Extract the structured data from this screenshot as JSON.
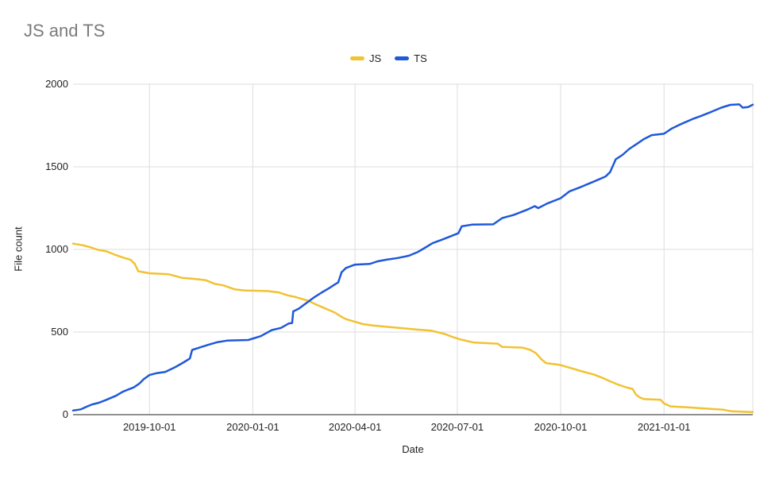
{
  "title": "JS and TS",
  "legend": [
    {
      "label": "JS",
      "color": "#f1c232"
    },
    {
      "label": "TS",
      "color": "#1f58d9"
    }
  ],
  "axis": {
    "y_title": "File count",
    "x_title": "Date"
  },
  "colors": {
    "gridline": "#dcdcdc",
    "axis_line": "#4d4d4d",
    "title_text": "#7b7b7b",
    "tick_text": "#1f1f1f"
  },
  "chart_data": {
    "type": "line",
    "title": "JS and TS",
    "xlabel": "Date",
    "ylabel": "File count",
    "ylim": [
      0,
      2000
    ],
    "yticks": [
      0,
      500,
      1000,
      1500,
      2000
    ],
    "xticks": [
      "2019-10-01",
      "2020-01-01",
      "2020-04-01",
      "2020-07-01",
      "2020-10-01",
      "2021-01-01"
    ],
    "x_range": [
      "2019-07-25",
      "2021-03-21"
    ],
    "grid": true,
    "legend_position": "top",
    "series": [
      {
        "name": "JS",
        "color": "#f1c232",
        "points": [
          [
            "2019-07-25",
            1035
          ],
          [
            "2019-08-03",
            1025
          ],
          [
            "2019-08-10",
            1012
          ],
          [
            "2019-08-16",
            998
          ],
          [
            "2019-08-24",
            988
          ],
          [
            "2019-09-01",
            966
          ],
          [
            "2019-09-08",
            950
          ],
          [
            "2019-09-14",
            938
          ],
          [
            "2019-09-18",
            912
          ],
          [
            "2019-09-21",
            868
          ],
          [
            "2019-10-01",
            856
          ],
          [
            "2019-10-18",
            850
          ],
          [
            "2019-10-30",
            828
          ],
          [
            "2019-11-12",
            820
          ],
          [
            "2019-11-20",
            814
          ],
          [
            "2019-11-28",
            792
          ],
          [
            "2019-12-06",
            782
          ],
          [
            "2019-12-16",
            758
          ],
          [
            "2019-12-24",
            752
          ],
          [
            "2020-01-14",
            748
          ],
          [
            "2020-01-24",
            740
          ],
          [
            "2020-02-01",
            722
          ],
          [
            "2020-02-08",
            712
          ],
          [
            "2020-02-14",
            700
          ],
          [
            "2020-02-19",
            690
          ],
          [
            "2020-02-26",
            668
          ],
          [
            "2020-03-03",
            650
          ],
          [
            "2020-03-08",
            635
          ],
          [
            "2020-03-14",
            618
          ],
          [
            "2020-03-20",
            592
          ],
          [
            "2020-03-24",
            578
          ],
          [
            "2020-04-01",
            562
          ],
          [
            "2020-04-08",
            548
          ],
          [
            "2020-04-17",
            540
          ],
          [
            "2020-04-28",
            532
          ],
          [
            "2020-05-12",
            524
          ],
          [
            "2020-05-26",
            515
          ],
          [
            "2020-06-08",
            508
          ],
          [
            "2020-06-20",
            488
          ],
          [
            "2020-06-26",
            472
          ],
          [
            "2020-07-04",
            455
          ],
          [
            "2020-07-16",
            436
          ],
          [
            "2020-08-06",
            430
          ],
          [
            "2020-08-10",
            410
          ],
          [
            "2020-08-28",
            406
          ],
          [
            "2020-09-04",
            392
          ],
          [
            "2020-09-09",
            372
          ],
          [
            "2020-09-14",
            334
          ],
          [
            "2020-09-18",
            312
          ],
          [
            "2020-09-30",
            302
          ],
          [
            "2020-10-06",
            290
          ],
          [
            "2020-10-13",
            276
          ],
          [
            "2020-10-20",
            262
          ],
          [
            "2020-10-31",
            242
          ],
          [
            "2020-11-09",
            218
          ],
          [
            "2020-11-14",
            202
          ],
          [
            "2020-11-21",
            182
          ],
          [
            "2020-11-28",
            166
          ],
          [
            "2020-12-04",
            156
          ],
          [
            "2020-12-07",
            122
          ],
          [
            "2020-12-10",
            106
          ],
          [
            "2020-12-14",
            94
          ],
          [
            "2020-12-29",
            90
          ],
          [
            "2021-01-01",
            68
          ],
          [
            "2021-01-07",
            50
          ],
          [
            "2021-01-22",
            44
          ],
          [
            "2021-02-05",
            38
          ],
          [
            "2021-02-23",
            30
          ],
          [
            "2021-03-02",
            20
          ],
          [
            "2021-03-21",
            16
          ]
        ]
      },
      {
        "name": "TS",
        "color": "#1f58d9",
        "points": [
          [
            "2019-07-25",
            25
          ],
          [
            "2019-08-01",
            32
          ],
          [
            "2019-08-06",
            48
          ],
          [
            "2019-08-11",
            62
          ],
          [
            "2019-08-17",
            72
          ],
          [
            "2019-08-23",
            88
          ],
          [
            "2019-09-01",
            114
          ],
          [
            "2019-09-07",
            138
          ],
          [
            "2019-09-12",
            152
          ],
          [
            "2019-09-17",
            165
          ],
          [
            "2019-09-22",
            188
          ],
          [
            "2019-09-26",
            215
          ],
          [
            "2019-10-01",
            240
          ],
          [
            "2019-10-08",
            252
          ],
          [
            "2019-10-15",
            258
          ],
          [
            "2019-10-24",
            288
          ],
          [
            "2019-10-31",
            315
          ],
          [
            "2019-11-06",
            340
          ],
          [
            "2019-11-08",
            392
          ],
          [
            "2019-11-14",
            405
          ],
          [
            "2019-11-22",
            422
          ],
          [
            "2019-11-30",
            438
          ],
          [
            "2019-12-09",
            448
          ],
          [
            "2019-12-28",
            452
          ],
          [
            "2020-01-08",
            475
          ],
          [
            "2020-01-18",
            512
          ],
          [
            "2020-01-26",
            525
          ],
          [
            "2020-02-02",
            552
          ],
          [
            "2020-02-05",
            555
          ],
          [
            "2020-02-06",
            625
          ],
          [
            "2020-02-11",
            642
          ],
          [
            "2020-02-19",
            682
          ],
          [
            "2020-02-25",
            712
          ],
          [
            "2020-03-02",
            738
          ],
          [
            "2020-03-09",
            766
          ],
          [
            "2020-03-14",
            788
          ],
          [
            "2020-03-17",
            800
          ],
          [
            "2020-03-20",
            862
          ],
          [
            "2020-03-24",
            888
          ],
          [
            "2020-04-01",
            908
          ],
          [
            "2020-04-14",
            912
          ],
          [
            "2020-04-21",
            928
          ],
          [
            "2020-04-29",
            938
          ],
          [
            "2020-05-09",
            948
          ],
          [
            "2020-05-19",
            962
          ],
          [
            "2020-05-27",
            985
          ],
          [
            "2020-06-01",
            1005
          ],
          [
            "2020-06-09",
            1038
          ],
          [
            "2020-06-17",
            1058
          ],
          [
            "2020-06-26",
            1082
          ],
          [
            "2020-07-02",
            1098
          ],
          [
            "2020-07-05",
            1140
          ],
          [
            "2020-07-14",
            1150
          ],
          [
            "2020-08-02",
            1152
          ],
          [
            "2020-08-10",
            1190
          ],
          [
            "2020-08-20",
            1208
          ],
          [
            "2020-09-01",
            1240
          ],
          [
            "2020-09-08",
            1262
          ],
          [
            "2020-09-11",
            1250
          ],
          [
            "2020-09-19",
            1278
          ],
          [
            "2020-10-01",
            1310
          ],
          [
            "2020-10-09",
            1352
          ],
          [
            "2020-10-19",
            1378
          ],
          [
            "2020-11-01",
            1415
          ],
          [
            "2020-11-10",
            1442
          ],
          [
            "2020-11-14",
            1468
          ],
          [
            "2020-11-19",
            1545
          ],
          [
            "2020-11-25",
            1572
          ],
          [
            "2020-12-01",
            1608
          ],
          [
            "2020-12-08",
            1640
          ],
          [
            "2020-12-14",
            1668
          ],
          [
            "2020-12-21",
            1692
          ],
          [
            "2021-01-01",
            1700
          ],
          [
            "2021-01-08",
            1732
          ],
          [
            "2021-01-16",
            1758
          ],
          [
            "2021-01-26",
            1788
          ],
          [
            "2021-02-03",
            1808
          ],
          [
            "2021-02-12",
            1832
          ],
          [
            "2021-02-21",
            1858
          ],
          [
            "2021-03-01",
            1875
          ],
          [
            "2021-03-09",
            1878
          ],
          [
            "2021-03-12",
            1858
          ],
          [
            "2021-03-17",
            1862
          ],
          [
            "2021-03-21",
            1876
          ]
        ]
      }
    ]
  }
}
